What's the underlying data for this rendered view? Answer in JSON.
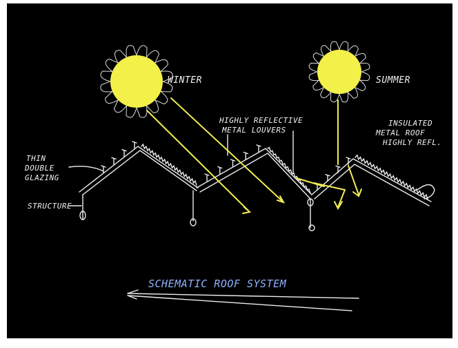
{
  "labels": {
    "winter": "WINTER",
    "summer": "SUMMER",
    "louvers": [
      "HIGHLY REFLECTIVE",
      "METAL LOUVERS"
    ],
    "roof": [
      "INSULATED",
      "METAL ROOF",
      "HIGHLY REFL."
    ],
    "glazing": [
      "THIN",
      "DOUBLE",
      "GLAZING"
    ],
    "structure": "STRUCTURE"
  },
  "caption": "SCHEMATIC ROOF SYSTEM"
}
